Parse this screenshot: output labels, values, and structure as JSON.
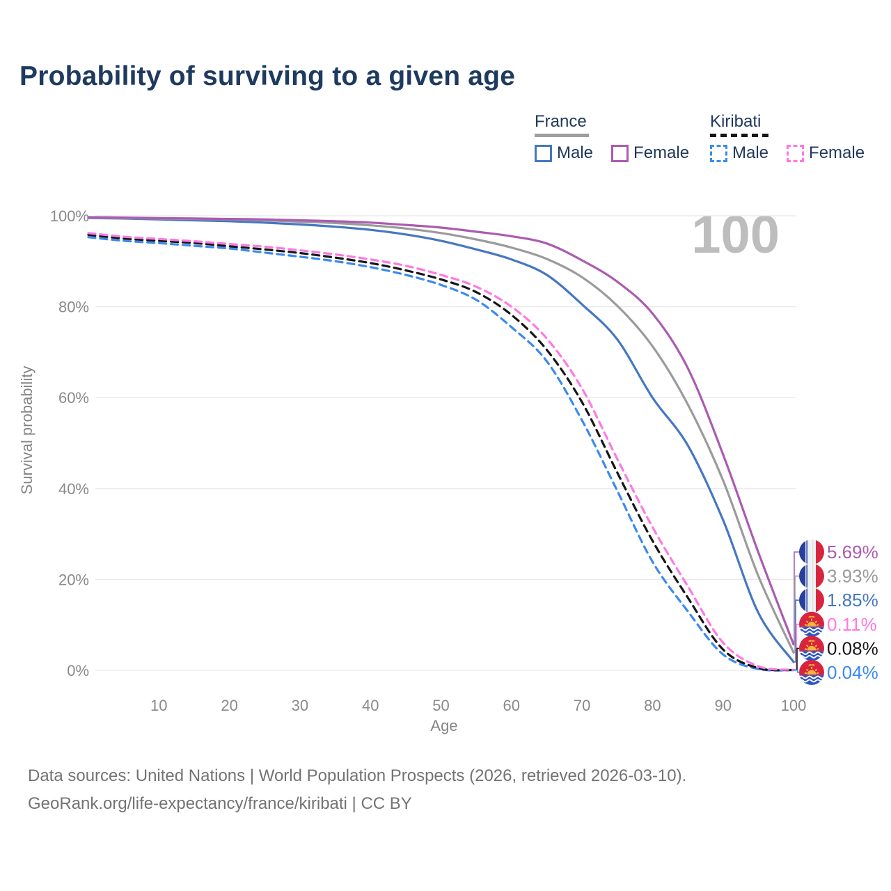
{
  "title": "Probability of surviving to a given age",
  "age_watermark": "100",
  "legend": {
    "groups": [
      {
        "label": "France",
        "line_style": "solid",
        "underline_color": "#9e9e9e",
        "items": [
          {
            "label": "Male",
            "color": "#4577c2"
          },
          {
            "label": "Female",
            "color": "#ab5bb0"
          }
        ]
      },
      {
        "label": "Kiribati",
        "line_style": "dashed",
        "underline_color": "#161616",
        "items": [
          {
            "label": "Male",
            "color": "#3b8af0"
          },
          {
            "label": "Female",
            "color": "#ff79e1"
          }
        ]
      }
    ]
  },
  "chart_data": {
    "type": "line",
    "title": "Probability of surviving to a given age",
    "xlabel": "Age",
    "ylabel": "Survival probability",
    "xlim": [
      0,
      100
    ],
    "ylim": [
      0,
      100
    ],
    "x_ticks": [
      10,
      20,
      30,
      40,
      50,
      60,
      70,
      80,
      90,
      100
    ],
    "y_ticks_percent": [
      0,
      20,
      40,
      60,
      80,
      100
    ],
    "grid": "horizontal only",
    "legend_position": "top-right",
    "ages": [
      0,
      5,
      10,
      15,
      20,
      25,
      30,
      35,
      40,
      45,
      50,
      55,
      60,
      65,
      70,
      75,
      80,
      85,
      90,
      95,
      100
    ],
    "series": [
      {
        "name": "France Female",
        "country": "France",
        "sex": "Female",
        "color": "#ab5bb0",
        "dash": "solid",
        "flag": "france",
        "end_label": "5.69%",
        "values": [
          99.7,
          99.6,
          99.5,
          99.4,
          99.3,
          99.2,
          99.0,
          98.8,
          98.5,
          98.0,
          97.4,
          96.5,
          95.5,
          93.9,
          90.2,
          85.5,
          78.5,
          66.5,
          47.5,
          26.0,
          5.69
        ]
      },
      {
        "name": "France Both sexes",
        "country": "France",
        "sex": "Both",
        "color": "#9b9b9b",
        "dash": "solid",
        "flag": "france",
        "end_label": "3.93%",
        "values": [
          99.6,
          99.5,
          99.4,
          99.3,
          99.2,
          99.0,
          98.7,
          98.4,
          97.9,
          97.2,
          96.2,
          94.8,
          93.0,
          90.5,
          86.5,
          80.2,
          71.3,
          58.5,
          41.8,
          20.8,
          3.93
        ]
      },
      {
        "name": "France Male",
        "country": "France",
        "sex": "Male",
        "color": "#4577c2",
        "dash": "solid",
        "flag": "france",
        "end_label": "1.85%",
        "values": [
          99.5,
          99.4,
          99.2,
          99.0,
          98.8,
          98.5,
          98.1,
          97.6,
          96.9,
          95.9,
          94.5,
          92.6,
          90.4,
          87.0,
          80.5,
          72.8,
          60.0,
          49.5,
          33.1,
          12.7,
          1.85
        ]
      },
      {
        "name": "Kiribati Female",
        "country": "Kiribati",
        "sex": "Female",
        "color": "#ff79e1",
        "dash": "dashed",
        "flag": "kiribati",
        "end_label": "0.11%",
        "values": [
          96.2,
          95.4,
          94.9,
          94.4,
          93.8,
          93.2,
          92.4,
          91.5,
          90.4,
          89.0,
          87.0,
          84.4,
          80.0,
          73.0,
          62.0,
          46.5,
          31.5,
          18.5,
          6.1,
          0.9,
          0.11
        ]
      },
      {
        "name": "Kiribati Both sexes",
        "country": "Kiribati",
        "sex": "Both",
        "color": "#161616",
        "dash": "dashed",
        "flag": "kiribati",
        "end_label": "0.08%",
        "values": [
          95.8,
          95.0,
          94.5,
          94.0,
          93.3,
          92.6,
          91.8,
          90.8,
          89.6,
          88.0,
          86.0,
          83.2,
          78.2,
          70.5,
          59.0,
          43.5,
          28.5,
          16.0,
          4.6,
          0.5,
          0.08
        ]
      },
      {
        "name": "Kiribati Male",
        "country": "Kiribati",
        "sex": "Male",
        "color": "#3b8af0",
        "dash": "dashed",
        "flag": "kiribati",
        "end_label": "0.04%",
        "values": [
          95.3,
          94.5,
          94.0,
          93.4,
          92.8,
          91.9,
          91.0,
          90.0,
          88.7,
          87.0,
          84.8,
          81.5,
          75.5,
          68.0,
          55.0,
          39.5,
          23.9,
          13.0,
          3.5,
          0.3,
          0.04
        ]
      }
    ]
  },
  "footer": {
    "line1": "Data sources: United Nations | World Population Prospects (2026, retrieved 2026-03-10).",
    "line2": "GeoRank.org/life-expectancy/france/kiribati | CC BY"
  }
}
